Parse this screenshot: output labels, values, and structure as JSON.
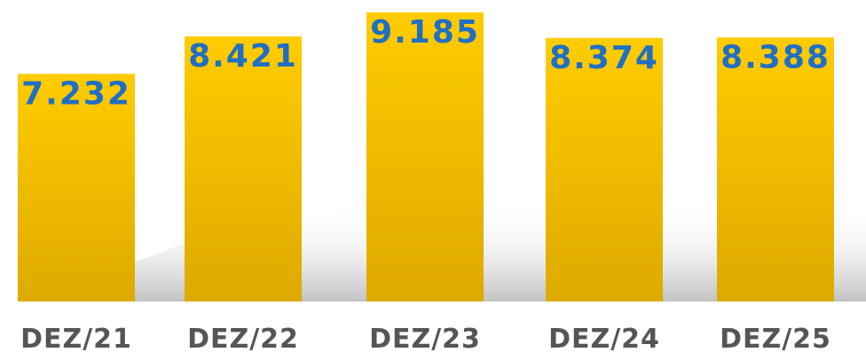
{
  "chart_data": {
    "type": "bar",
    "categories": [
      "DEZ/21",
      "DEZ/22",
      "DEZ/23",
      "DEZ/24",
      "DEZ/25"
    ],
    "values": [
      7232,
      8421,
      9185,
      8374,
      8388
    ],
    "value_labels": [
      "7.232",
      "8.421",
      "9.185",
      "8.374",
      "8.388"
    ],
    "color": "#ffc800"
  }
}
